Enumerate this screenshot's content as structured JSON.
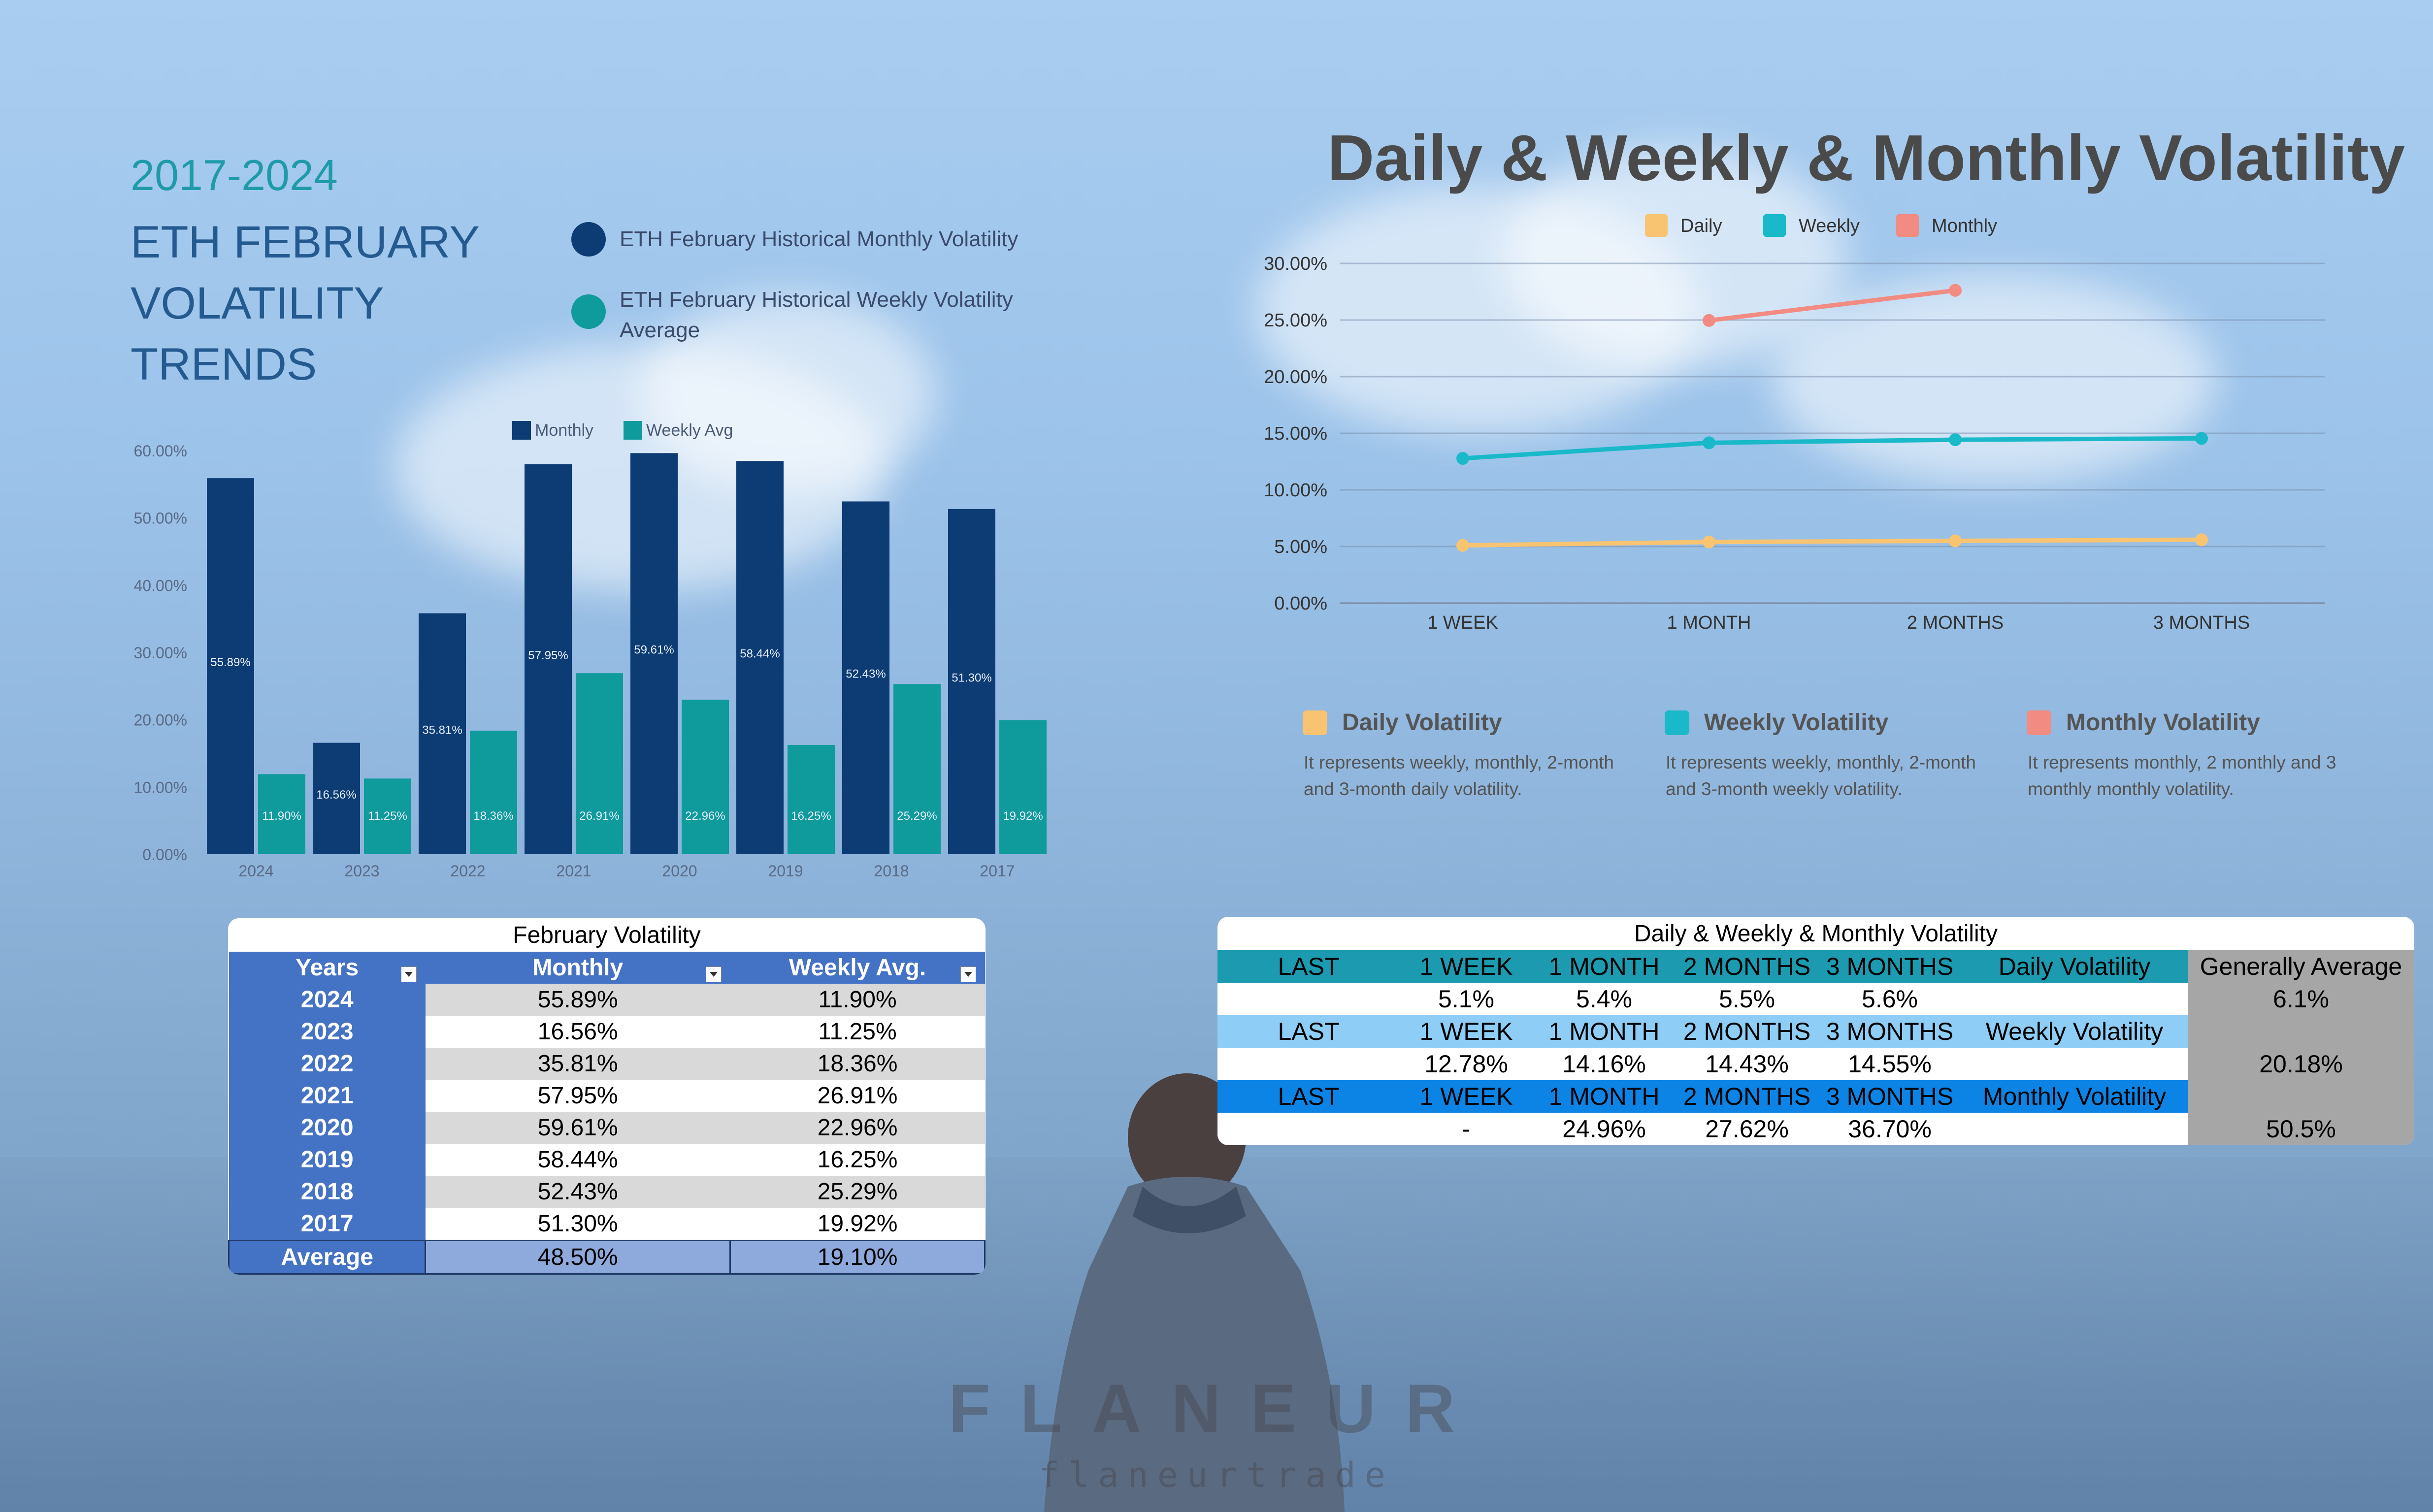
{
  "left": {
    "years_title": "2017-2024",
    "title_lines": [
      "ETH FEBRUARY",
      "VOLATILITY",
      "TRENDS"
    ],
    "legend": [
      {
        "label": "ETH February Historical Monthly Volatility",
        "color": "#0d3b73"
      },
      {
        "label": "ETH February Historical Weekly Volatility Average",
        "color": "#0f9a9c"
      }
    ]
  },
  "chart_data": [
    {
      "type": "bar",
      "categories": [
        "2024",
        "2023",
        "2022",
        "2021",
        "2020",
        "2019",
        "2018",
        "2017"
      ],
      "series": [
        {
          "name": "Monthly",
          "color": "#0d3b73",
          "values": [
            55.89,
            16.56,
            35.81,
            57.95,
            59.61,
            58.44,
            52.43,
            51.3
          ],
          "labels": [
            "55.89%",
            "16.56%",
            "35.81%",
            "57.95%",
            "59.61%",
            "58.44%",
            "52.43%",
            "51.30%"
          ]
        },
        {
          "name": "Weekly Avg",
          "color": "#0f9a9c",
          "values": [
            11.9,
            11.25,
            18.36,
            26.91,
            22.96,
            16.25,
            25.29,
            19.92
          ],
          "labels": [
            "11.90%",
            "11.25%",
            "18.36%",
            "26.91%",
            "22.96%",
            "16.25%",
            "25.29%",
            "19.92%"
          ]
        }
      ],
      "ylim": [
        0,
        60
      ],
      "yticks": [
        "0.00%",
        "10.00%",
        "20.00%",
        "30.00%",
        "40.00%",
        "50.00%",
        "60.00%"
      ],
      "legend_position": "top"
    },
    {
      "type": "line",
      "title": "Daily & Weekly & Monthly Volatility",
      "categories": [
        "1 WEEK",
        "1 MONTH",
        "2 MONTHS",
        "3 MONTHS"
      ],
      "series": [
        {
          "name": "Daily",
          "color": "#f8c471",
          "values": [
            5.1,
            5.4,
            5.5,
            5.6
          ]
        },
        {
          "name": "Weekly",
          "color": "#1ab9c9",
          "values": [
            12.78,
            14.16,
            14.43,
            14.55
          ]
        },
        {
          "name": "Monthly",
          "color": "#f28b82",
          "values": [
            null,
            24.96,
            27.62,
            null
          ]
        }
      ],
      "ylim": [
        0,
        30
      ],
      "yticks": [
        "0.00%",
        "5.00%",
        "10.00%",
        "15.00%",
        "20.00%",
        "25.00%",
        "30.00%"
      ],
      "grid": true,
      "legend_position": "top"
    }
  ],
  "line_legend": [
    {
      "title": "Daily Volatility",
      "color": "#f8c471",
      "desc": "It represents weekly, monthly, 2-month and 3-month daily volatility."
    },
    {
      "title": "Weekly Volatility",
      "color": "#1ab9c9",
      "desc": "It represents weekly, monthly, 2-month and 3-month weekly volatility."
    },
    {
      "title": "Monthly Volatility",
      "color": "#f28b82",
      "desc": "It represents monthly, 2 monthly and 3 monthly monthly volatility."
    }
  ],
  "feb_table": {
    "caption": "February Volatility",
    "headers": [
      "Years",
      "Monthly",
      "Weekly Avg."
    ],
    "rows": [
      [
        "2024",
        "55.89%",
        "11.90%"
      ],
      [
        "2023",
        "16.56%",
        "11.25%"
      ],
      [
        "2022",
        "35.81%",
        "18.36%"
      ],
      [
        "2021",
        "57.95%",
        "26.91%"
      ],
      [
        "2020",
        "59.61%",
        "22.96%"
      ],
      [
        "2019",
        "58.44%",
        "16.25%"
      ],
      [
        "2018",
        "52.43%",
        "25.29%"
      ],
      [
        "2017",
        "51.30%",
        "19.92%"
      ]
    ],
    "average": [
      "Average",
      "48.50%",
      "19.10%"
    ]
  },
  "dwm_table": {
    "caption": "Daily & Weekly & Monthly Volatility",
    "header_cells": [
      "LAST",
      "1 WEEK",
      "1 MONTH",
      "2 MONTHS",
      "3 MONTHS"
    ],
    "generally_average_label": "Generally Average",
    "sections": [
      {
        "label": "Daily Volatility",
        "values": [
          "",
          "5.1%",
          "5.4%",
          "5.5%",
          "5.6%"
        ],
        "average": "6.1%"
      },
      {
        "label": "Weekly Volatility",
        "values": [
          "",
          "12.78%",
          "14.16%",
          "14.43%",
          "14.55%"
        ],
        "average": "20.18%"
      },
      {
        "label": "Monthly Volatility",
        "values": [
          "",
          "-",
          "24.96%",
          "27.62%",
          "36.70%"
        ],
        "average": "50.5%"
      }
    ]
  },
  "brand": {
    "name": "FLANEUR",
    "handle": "flaneurtrade"
  }
}
